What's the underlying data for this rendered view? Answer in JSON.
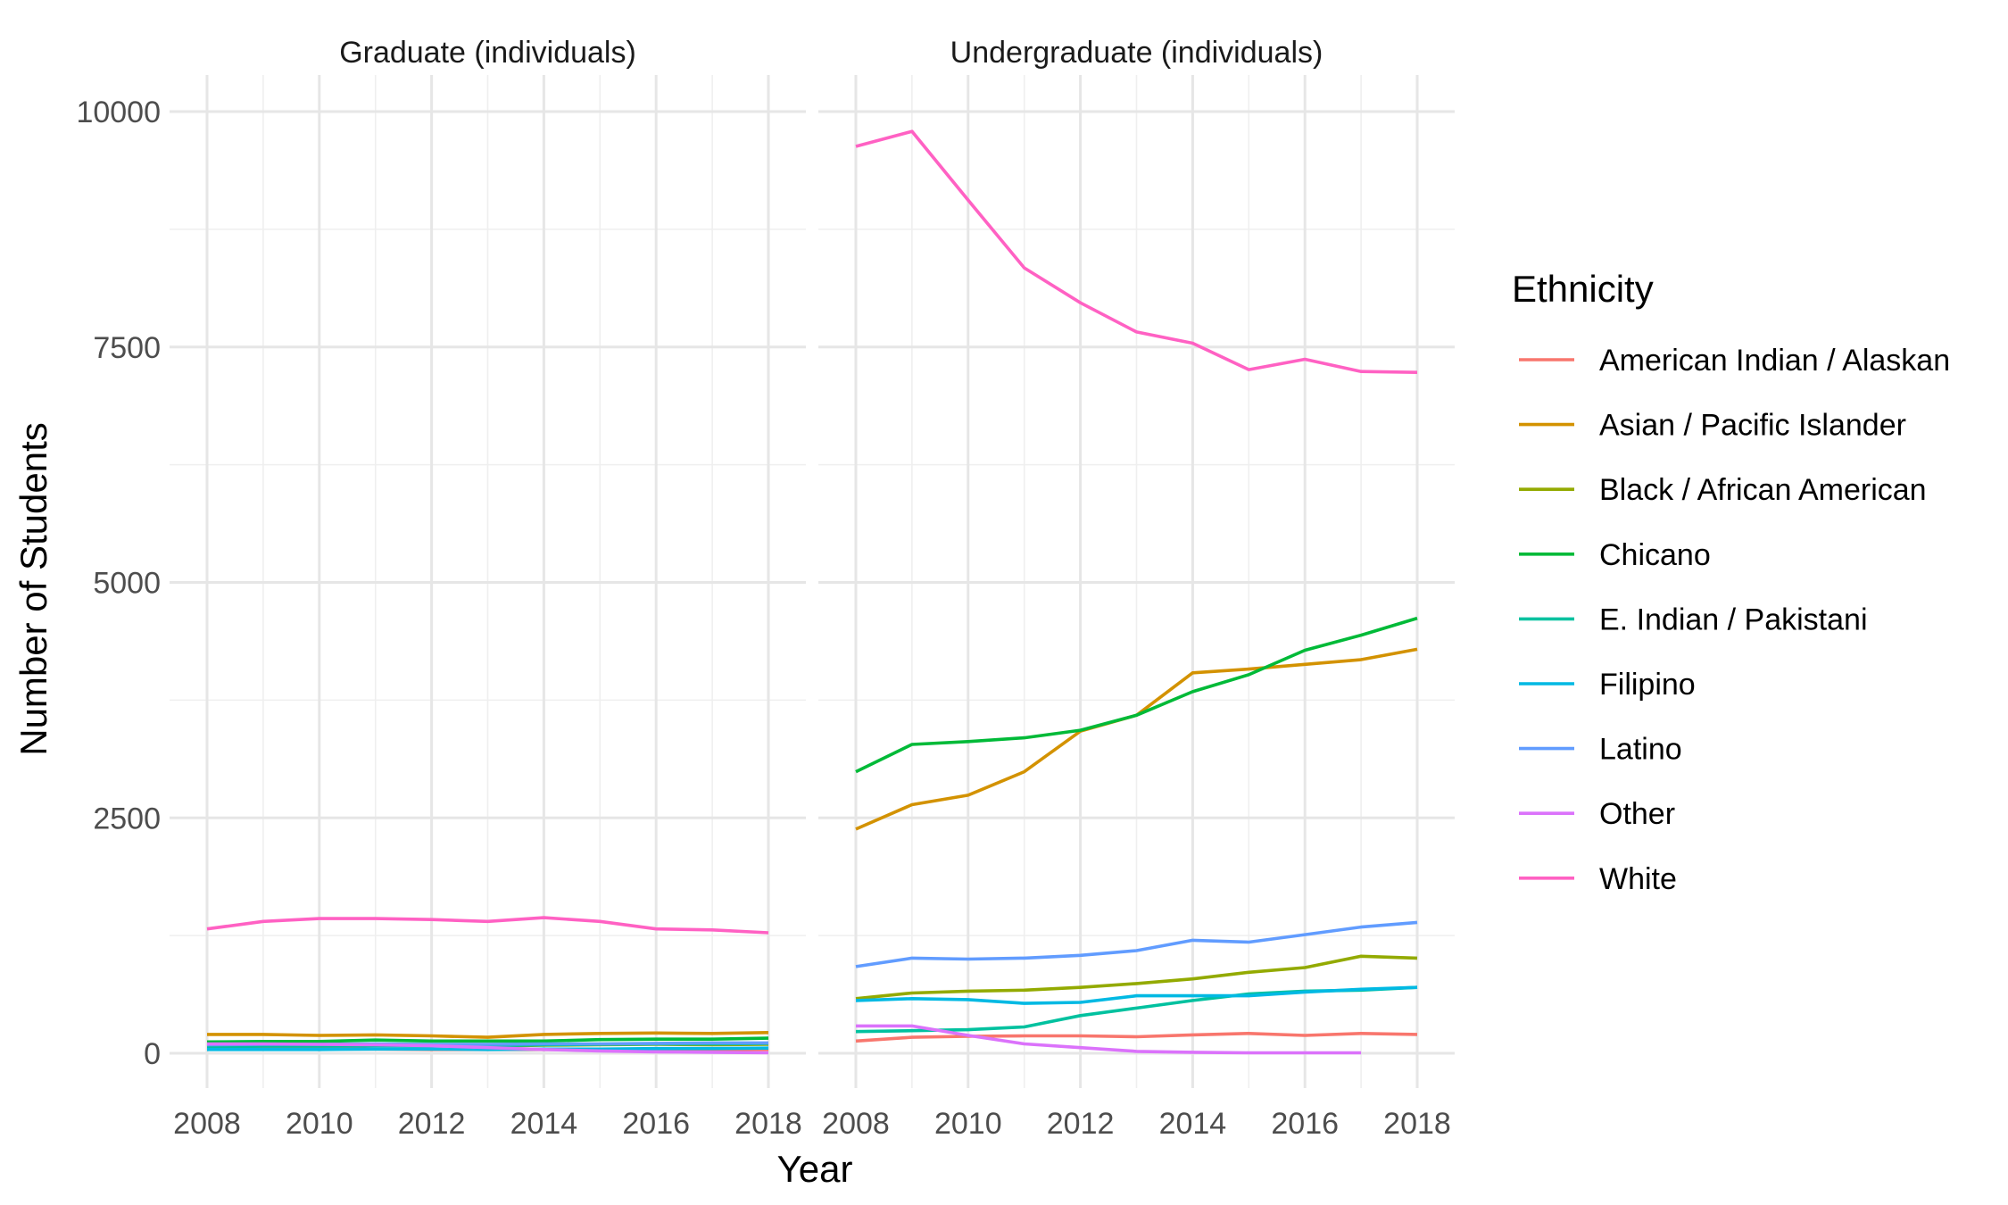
{
  "chart_data": {
    "type": "line",
    "facets": [
      "Graduate (individuals)",
      "Undergraduate (individuals)"
    ],
    "xlabel": "Year",
    "ylabel": "Number of Students",
    "x": [
      2008,
      2009,
      2010,
      2011,
      2012,
      2013,
      2014,
      2015,
      2016,
      2017,
      2018
    ],
    "x_ticks": [
      "2008",
      "2010",
      "2012",
      "2014",
      "2016",
      "2018"
    ],
    "y_ticks": [
      "0",
      "2500",
      "5000",
      "7500",
      "10000"
    ],
    "xlim": [
      2008,
      2018
    ],
    "ylim": [
      -400,
      10300
    ],
    "grid": true,
    "legend": {
      "title": "Ethnicity",
      "position": "right"
    },
    "series": [
      {
        "name": "American Indian / Alaskan",
        "color": "#F8766D",
        "values": {
          "Graduate (individuals)": [
            50,
            50,
            45,
            45,
            40,
            40,
            40,
            40,
            40,
            40,
            40
          ],
          "Undergraduate (individuals)": [
            130,
            170,
            180,
            185,
            185,
            175,
            195,
            210,
            190,
            210,
            200
          ]
        }
      },
      {
        "name": "Asian / Pacific Islander",
        "color": "#D39200",
        "values": {
          "Graduate (individuals)": [
            200,
            200,
            190,
            195,
            185,
            170,
            200,
            210,
            215,
            210,
            220
          ],
          "Undergraduate (individuals)": [
            2380,
            2640,
            2740,
            2990,
            3420,
            3590,
            4040,
            4080,
            4130,
            4180,
            4290
          ]
        }
      },
      {
        "name": "Black / African American",
        "color": "#93AA00",
        "values": {
          "Graduate (individuals)": [
            80,
            80,
            80,
            85,
            80,
            75,
            85,
            90,
            95,
            90,
            95
          ],
          "Undergraduate (individuals)": [
            580,
            640,
            660,
            670,
            700,
            740,
            790,
            860,
            910,
            1030,
            1010
          ]
        }
      },
      {
        "name": "Chicano",
        "color": "#00BA38",
        "values": {
          "Graduate (individuals)": [
            120,
            125,
            125,
            140,
            130,
            130,
            130,
            145,
            150,
            150,
            160
          ],
          "Undergraduate (individuals)": [
            2990,
            3280,
            3310,
            3350,
            3430,
            3590,
            3840,
            4020,
            4280,
            4440,
            4620
          ]
        }
      },
      {
        "name": "E. Indian / Pakistani",
        "color": "#00C19F",
        "values": {
          "Graduate (individuals)": [
            70,
            75,
            75,
            80,
            80,
            80,
            90,
            95,
            100,
            100,
            105
          ],
          "Undergraduate (individuals)": [
            230,
            240,
            250,
            280,
            400,
            480,
            560,
            630,
            660,
            670,
            700
          ]
        }
      },
      {
        "name": "Filipino",
        "color": "#00B9E3",
        "values": {
          "Graduate (individuals)": [
            40,
            40,
            40,
            45,
            45,
            40,
            45,
            45,
            50,
            50,
            55
          ],
          "Undergraduate (individuals)": [
            560,
            580,
            570,
            530,
            540,
            610,
            610,
            610,
            650,
            680,
            700
          ]
        }
      },
      {
        "name": "Latino",
        "color": "#619CFF",
        "values": {
          "Graduate (individuals)": [
            90,
            95,
            95,
            100,
            95,
            95,
            100,
            100,
            105,
            110,
            110
          ],
          "Undergraduate (individuals)": [
            920,
            1010,
            1000,
            1010,
            1040,
            1090,
            1200,
            1180,
            1260,
            1340,
            1390
          ]
        }
      },
      {
        "name": "Other",
        "color": "#DB72FB",
        "values": {
          "Graduate (individuals)": [
            100,
            100,
            95,
            90,
            80,
            60,
            40,
            25,
            15,
            10,
            5
          ],
          "Undergraduate (individuals)": [
            290,
            290,
            190,
            100,
            60,
            20,
            10,
            5,
            5,
            5,
            null
          ]
        }
      },
      {
        "name": "White",
        "color": "#FF61C3",
        "values": {
          "Graduate (individuals)": [
            1320,
            1400,
            1430,
            1430,
            1420,
            1400,
            1440,
            1400,
            1320,
            1310,
            1280
          ],
          "Undergraduate (individuals)": [
            9630,
            9790,
            9060,
            8340,
            7970,
            7660,
            7540,
            7260,
            7370,
            7240,
            7230
          ]
        }
      }
    ]
  }
}
